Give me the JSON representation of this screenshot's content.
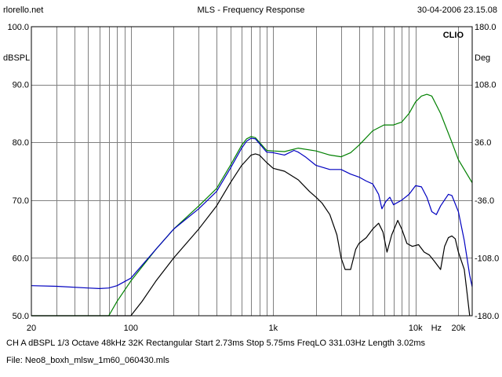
{
  "header": {
    "left": "rlorello.net",
    "title": "MLS - Frequency Response",
    "date": "30-04-2006 23.15.08"
  },
  "footer": {
    "params": "CH A    dBSPL    1/3 Octave    48kHz    32K    Rectangular    Start 2.73ms      Stop 5.75ms      FreqLO 331.03Hz      Length 3.02ms",
    "file": "File: Neo8_boxh_mlsw_1m60_060430.mls"
  },
  "chart_data": {
    "type": "line",
    "title": "MLS - Frequency Response",
    "brand": "CLIO",
    "xscale": "log",
    "xlim": [
      20,
      25000
    ],
    "ylim": [
      50,
      100
    ],
    "y2lim": [
      -180,
      180
    ],
    "ylabel": "dBSPL",
    "y2label": "Deg",
    "x_tick_labels": [
      {
        "value": 20,
        "label": "20"
      },
      {
        "value": 100,
        "label": "100"
      },
      {
        "value": 1000,
        "label": "1k"
      },
      {
        "value": 10000,
        "label": "10k"
      },
      {
        "value": 14000,
        "label": "Hz"
      },
      {
        "value": 20000,
        "label": "20k"
      }
    ],
    "y_ticks": [
      "100.0",
      "90.0",
      "80.0",
      "70.0",
      "60.0",
      "50.0"
    ],
    "y2_ticks": [
      "180.0",
      "108.0",
      "36.0",
      "-36.0",
      "-108.0",
      "-180.0"
    ],
    "grid": true,
    "colors": {
      "green": "#008000",
      "blue": "#0000c0",
      "black": "#000000"
    },
    "series": [
      {
        "color": "green",
        "x": [
          20,
          40,
          60,
          70,
          80,
          100,
          150,
          200,
          300,
          400,
          500,
          600,
          650,
          700,
          750,
          800,
          900,
          1000,
          1200,
          1500,
          2000,
          2500,
          3000,
          3500,
          4000,
          5000,
          6000,
          7000,
          8000,
          9000,
          10000,
          11000,
          12000,
          13000,
          15000,
          18000,
          20000,
          23000,
          25000
        ],
        "y": [
          50,
          50,
          50,
          50,
          52.5,
          56,
          61.5,
          65,
          69,
          72,
          76,
          79.5,
          80.6,
          81,
          80.8,
          80,
          78.6,
          78.5,
          78.4,
          79,
          78.5,
          77.8,
          77.5,
          78.2,
          79.5,
          82,
          83,
          83,
          83.5,
          85,
          87,
          88,
          88.3,
          88,
          85,
          80,
          77,
          74.5,
          73
        ]
      },
      {
        "color": "blue",
        "x": [
          20,
          30,
          50,
          60,
          70,
          80,
          100,
          150,
          200,
          300,
          400,
          500,
          600,
          650,
          700,
          750,
          800,
          900,
          1000,
          1200,
          1400,
          1500,
          1700,
          2000,
          2500,
          3000,
          3500,
          4000,
          4500,
          5000,
          5500,
          5800,
          6200,
          6600,
          7000,
          8000,
          9000,
          10000,
          11000,
          12000,
          13000,
          14000,
          15000,
          17000,
          18000,
          20000,
          22000,
          23000,
          24000,
          25000
        ],
        "y": [
          55.2,
          55.1,
          54.8,
          54.7,
          54.8,
          55.2,
          56.5,
          61.5,
          65,
          68.5,
          71.5,
          75.5,
          79,
          80.2,
          80.7,
          80.6,
          79.8,
          78.3,
          78.2,
          77.8,
          78.6,
          78.3,
          77.4,
          76,
          75.3,
          75.3,
          74.5,
          74,
          73.3,
          72.8,
          71,
          68.5,
          69.8,
          70.5,
          69.2,
          70,
          71,
          72.5,
          72.3,
          70.5,
          68,
          67.5,
          69,
          71,
          70.8,
          68,
          63,
          60,
          57,
          55
        ]
      },
      {
        "color": "black",
        "x": [
          20,
          60,
          80,
          100,
          120,
          150,
          200,
          300,
          400,
          500,
          600,
          700,
          750,
          800,
          900,
          1000,
          1200,
          1500,
          1800,
          2000,
          2200,
          2500,
          2800,
          3000,
          3200,
          3500,
          3800,
          4000,
          4500,
          5000,
          5500,
          5900,
          6300,
          6800,
          7500,
          8000,
          8700,
          9500,
          10500,
          11500,
          12500,
          13500,
          15000,
          16000,
          17000,
          18000,
          19000,
          20000,
          22000,
          23000,
          24000
        ],
        "y": [
          50,
          50,
          50,
          50,
          52.5,
          56,
          60,
          65,
          69,
          73,
          76,
          77.8,
          78,
          77.8,
          76.5,
          75.5,
          75,
          73.5,
          71.5,
          70.5,
          69.5,
          67.5,
          64,
          60,
          58,
          58,
          61.5,
          62.5,
          63.5,
          65,
          66,
          64.5,
          61,
          64,
          66.5,
          65,
          62.5,
          62,
          62.3,
          61,
          60.5,
          59.5,
          58,
          62,
          63.5,
          63.8,
          63.3,
          61,
          58,
          54,
          50
        ]
      }
    ]
  }
}
